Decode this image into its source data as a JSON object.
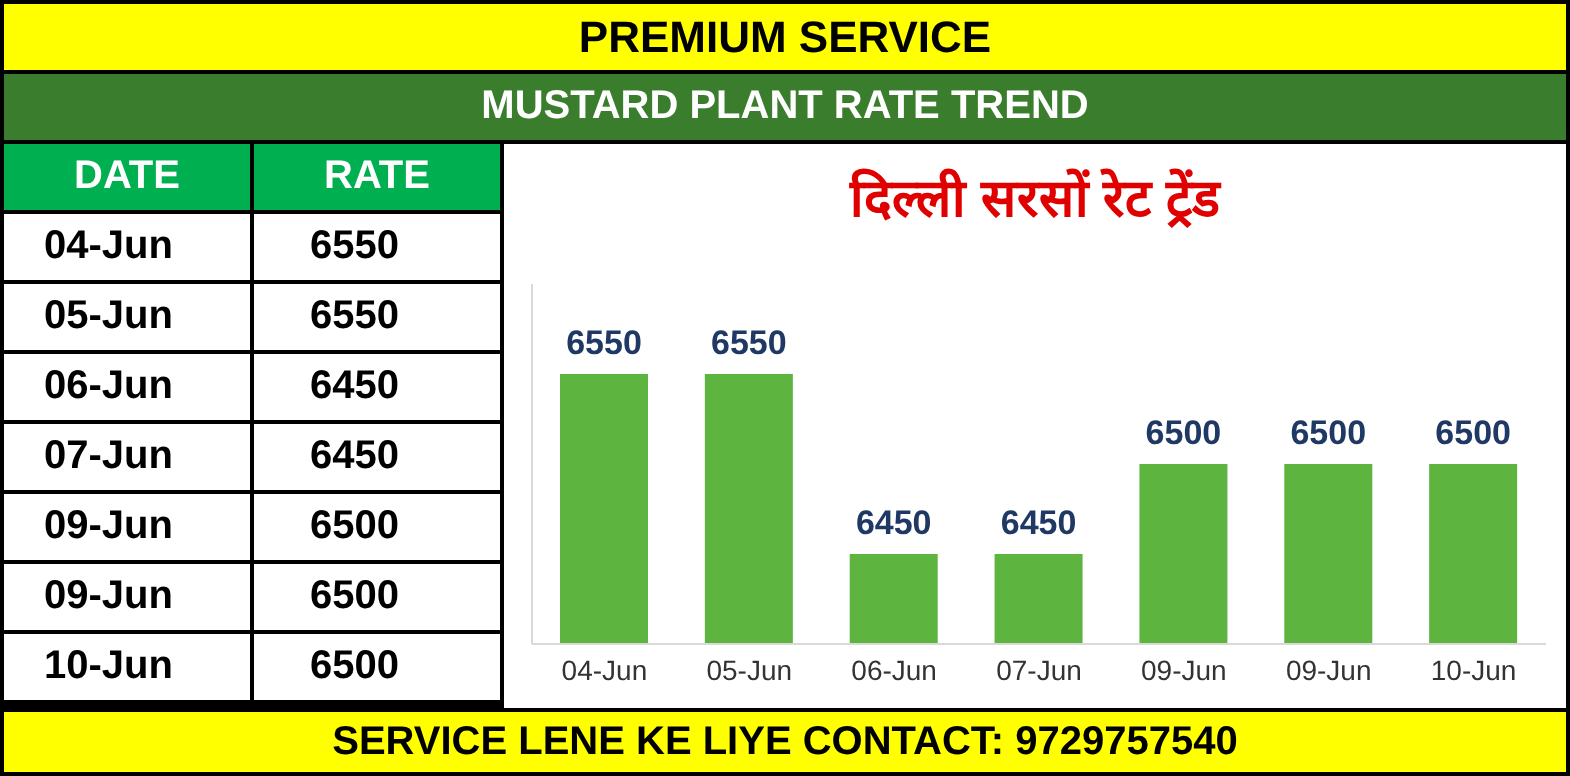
{
  "chart_data": [
    {
      "type": "other",
      "annotations": [
        "DATE",
        "RATE"
      ],
      "categories": [
        "04-Jun",
        "05-Jun",
        "06-Jun",
        "07-Jun",
        "09-Jun",
        "09-Jun",
        "10-Jun"
      ],
      "values": [
        6550,
        6550,
        6450,
        6450,
        6500,
        6500,
        6500
      ],
      "data_labels": true
    },
    {
      "type": "bar",
      "title": "दिल्ली सरसों रेट ट्रेंड",
      "subtitle": "MUSTARD PLANT RATE TREND",
      "annotations": [
        "PREMIUM SERVICE",
        "SERVICE LENE KE LIYE CONTACT: 9729757540"
      ],
      "categories": [
        "04-Jun",
        "05-Jun",
        "06-Jun",
        "07-Jun",
        "09-Jun",
        "09-Jun",
        "10-Jun"
      ],
      "values": [
        6550,
        6550,
        6450,
        6450,
        6500,
        6500,
        6500
      ],
      "color": "#5db53f",
      "ylim": [
        6400,
        6600
      ],
      "tick_labels": "x",
      "data_labels": true
    }
  ]
}
